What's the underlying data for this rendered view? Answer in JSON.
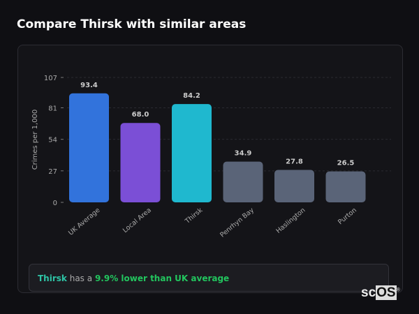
{
  "header": {
    "title": "Compare Thirsk with similar areas"
  },
  "chart_data": {
    "type": "bar",
    "categories": [
      "UK Average",
      "Local Area",
      "Thirsk",
      "Penrhyn Bay",
      "Haslington",
      "Purton"
    ],
    "values": [
      93.4,
      68.0,
      84.2,
      34.9,
      27.8,
      26.5
    ],
    "labels": [
      "93.4",
      "68.0",
      "84.2",
      "34.9",
      "27.8",
      "26.5"
    ],
    "colors": [
      "#3273dc",
      "#7b4fd6",
      "#1fb8cf",
      "#5a6478",
      "#5a6478",
      "#5a6478"
    ],
    "ylabel": "Crimes per 1,000",
    "yticks": [
      0,
      27,
      54,
      81,
      107
    ],
    "ylim": [
      0,
      107
    ],
    "grid": true
  },
  "callout": {
    "place": "Thirsk",
    "middle": "has a",
    "comparison": "9.9% lower than UK average"
  },
  "logo": {
    "text": "scOS"
  }
}
